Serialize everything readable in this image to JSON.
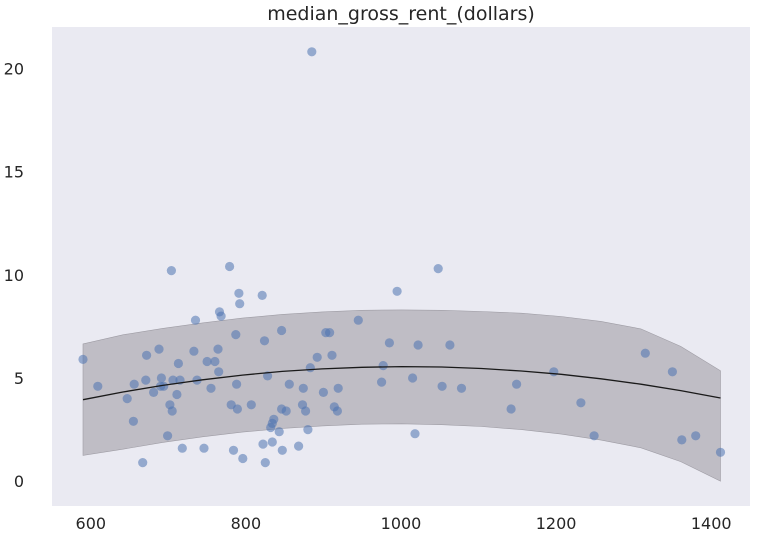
{
  "chart_data": {
    "type": "scatter",
    "title": "median_gross_rent_(dollars)",
    "xlabel": "",
    "ylabel": "",
    "xlim": [
      550,
      1450
    ],
    "ylim": [
      -1.2,
      22
    ],
    "xticks": [
      600,
      800,
      1000,
      1200,
      1400
    ],
    "yticks": [
      0,
      5,
      10,
      15,
      20
    ],
    "grid": false,
    "background": "#eaeaf2",
    "point_color": "#4c72b0",
    "band_color": "#b7b5bd",
    "line_color": "#1a1a1a",
    "points": [
      [
        590,
        5.9
      ],
      [
        609,
        4.6
      ],
      [
        647,
        4.0
      ],
      [
        655,
        2.9
      ],
      [
        656,
        4.7
      ],
      [
        667,
        0.9
      ],
      [
        671,
        4.9
      ],
      [
        672,
        6.1
      ],
      [
        681,
        4.3
      ],
      [
        688,
        6.4
      ],
      [
        690,
        4.6
      ],
      [
        691,
        5.0
      ],
      [
        694,
        4.6
      ],
      [
        699,
        2.2
      ],
      [
        702,
        3.7
      ],
      [
        704,
        10.2
      ],
      [
        705,
        3.4
      ],
      [
        706,
        4.9
      ],
      [
        711,
        4.2
      ],
      [
        713,
        5.7
      ],
      [
        715,
        4.9
      ],
      [
        718,
        1.6
      ],
      [
        733,
        6.3
      ],
      [
        735,
        7.8
      ],
      [
        737,
        4.9
      ],
      [
        746,
        1.6
      ],
      [
        750,
        5.8
      ],
      [
        755,
        4.5
      ],
      [
        760,
        5.8
      ],
      [
        764,
        6.4
      ],
      [
        765,
        5.3
      ],
      [
        766,
        8.2
      ],
      [
        768,
        8.0
      ],
      [
        779,
        10.4
      ],
      [
        781,
        3.7
      ],
      [
        784,
        1.5
      ],
      [
        787,
        7.1
      ],
      [
        788,
        4.7
      ],
      [
        789,
        3.5
      ],
      [
        791,
        9.1
      ],
      [
        792,
        8.6
      ],
      [
        796,
        1.1
      ],
      [
        807,
        3.7
      ],
      [
        821,
        9.0
      ],
      [
        822,
        1.8
      ],
      [
        824,
        6.8
      ],
      [
        825,
        0.9
      ],
      [
        828,
        5.1
      ],
      [
        832,
        2.6
      ],
      [
        834,
        2.8
      ],
      [
        834,
        1.9
      ],
      [
        836,
        3.0
      ],
      [
        843,
        2.4
      ],
      [
        846,
        7.3
      ],
      [
        846,
        3.5
      ],
      [
        847,
        1.5
      ],
      [
        852,
        3.4
      ],
      [
        856,
        4.7
      ],
      [
        868,
        1.7
      ],
      [
        873,
        3.7
      ],
      [
        874,
        4.5
      ],
      [
        877,
        3.4
      ],
      [
        880,
        2.5
      ],
      [
        883,
        5.5
      ],
      [
        885,
        20.8
      ],
      [
        892,
        6.0
      ],
      [
        900,
        4.3
      ],
      [
        903,
        7.2
      ],
      [
        908,
        7.2
      ],
      [
        911,
        6.1
      ],
      [
        914,
        3.6
      ],
      [
        918,
        3.4
      ],
      [
        919,
        4.5
      ],
      [
        945,
        7.8
      ],
      [
        975,
        4.8
      ],
      [
        977,
        5.6
      ],
      [
        985,
        6.7
      ],
      [
        995,
        9.2
      ],
      [
        1015,
        5.0
      ],
      [
        1018,
        2.3
      ],
      [
        1022,
        6.6
      ],
      [
        1048,
        10.3
      ],
      [
        1053,
        4.6
      ],
      [
        1063,
        6.6
      ],
      [
        1078,
        4.5
      ],
      [
        1142,
        3.5
      ],
      [
        1149,
        4.7
      ],
      [
        1197,
        5.3
      ],
      [
        1232,
        3.8
      ],
      [
        1249,
        2.2
      ],
      [
        1315,
        6.2
      ],
      [
        1350,
        5.3
      ],
      [
        1362,
        2.0
      ],
      [
        1380,
        2.2
      ],
      [
        1412,
        1.4
      ]
    ],
    "fit_x": [
      590,
      641.4,
      692.8,
      744.1,
      795.5,
      846.9,
      898.3,
      949.6,
      1001,
      1052.4,
      1103.8,
      1155.1,
      1206.5,
      1257.9,
      1309.3,
      1360.6,
      1412
    ],
    "fit_y": [
      3.95,
      4.32,
      4.64,
      4.91,
      5.14,
      5.32,
      5.44,
      5.52,
      5.55,
      5.53,
      5.46,
      5.34,
      5.18,
      4.96,
      4.7,
      4.39,
      4.03
    ],
    "fit_y_adjusted_note": "",
    "band_lower": [
      1.25,
      1.55,
      1.88,
      2.15,
      2.38,
      2.56,
      2.68,
      2.76,
      2.78,
      2.74,
      2.65,
      2.5,
      2.28,
      1.99,
      1.62,
      0.95,
      0.0
    ],
    "band_upper": [
      6.65,
      7.09,
      7.4,
      7.67,
      7.9,
      8.08,
      8.2,
      8.28,
      8.3,
      8.28,
      8.22,
      8.14,
      7.98,
      7.74,
      7.38,
      6.53,
      5.35
    ]
  }
}
